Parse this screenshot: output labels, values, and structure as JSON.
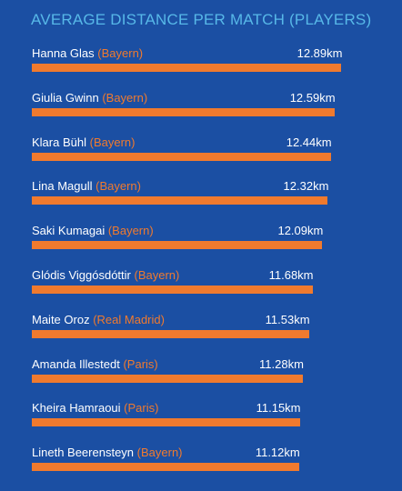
{
  "colors": {
    "background": "#1b4fa3",
    "title": "#57b8e8",
    "bar": "#f07a2e",
    "club": "#f07a2e",
    "text": "#ffffff"
  },
  "chart_data": {
    "type": "bar",
    "orientation": "horizontal",
    "title": "AVERAGE DISTANCE PER MATCH (PLAYERS)",
    "unit": "km",
    "grid": false,
    "xlim": [
      0,
      13.25
    ],
    "players": [
      {
        "name": "Hanna Glas",
        "club": "(Bayern)",
        "value": 12.89,
        "label": "12.89km"
      },
      {
        "name": "Giulia Gwinn",
        "club": "(Bayern)",
        "value": 12.59,
        "label": "12.59km"
      },
      {
        "name": "Klara Bühl",
        "club": "(Bayern)",
        "value": 12.44,
        "label": "12.44km"
      },
      {
        "name": "Lina Magull",
        "club": "(Bayern)",
        "value": 12.32,
        "label": "12.32km"
      },
      {
        "name": "Saki Kumagai",
        "club": "(Bayern)",
        "value": 12.09,
        "label": "12.09km"
      },
      {
        "name": "Glódis Viggósdóttir",
        "club": "(Bayern)",
        "value": 11.68,
        "label": "11.68km"
      },
      {
        "name": "Maite Oroz",
        "club": "(Real Madrid)",
        "value": 11.53,
        "label": "11.53km"
      },
      {
        "name": "Amanda Illestedt",
        "club": "(Paris)",
        "value": 11.28,
        "label": "11.28km"
      },
      {
        "name": "Kheira Hamraoui",
        "club": "(Paris)",
        "value": 11.15,
        "label": "11.15km"
      },
      {
        "name": "Lineth Beerensteyn",
        "club": "(Bayern)",
        "value": 11.12,
        "label": "11.12km"
      }
    ]
  }
}
